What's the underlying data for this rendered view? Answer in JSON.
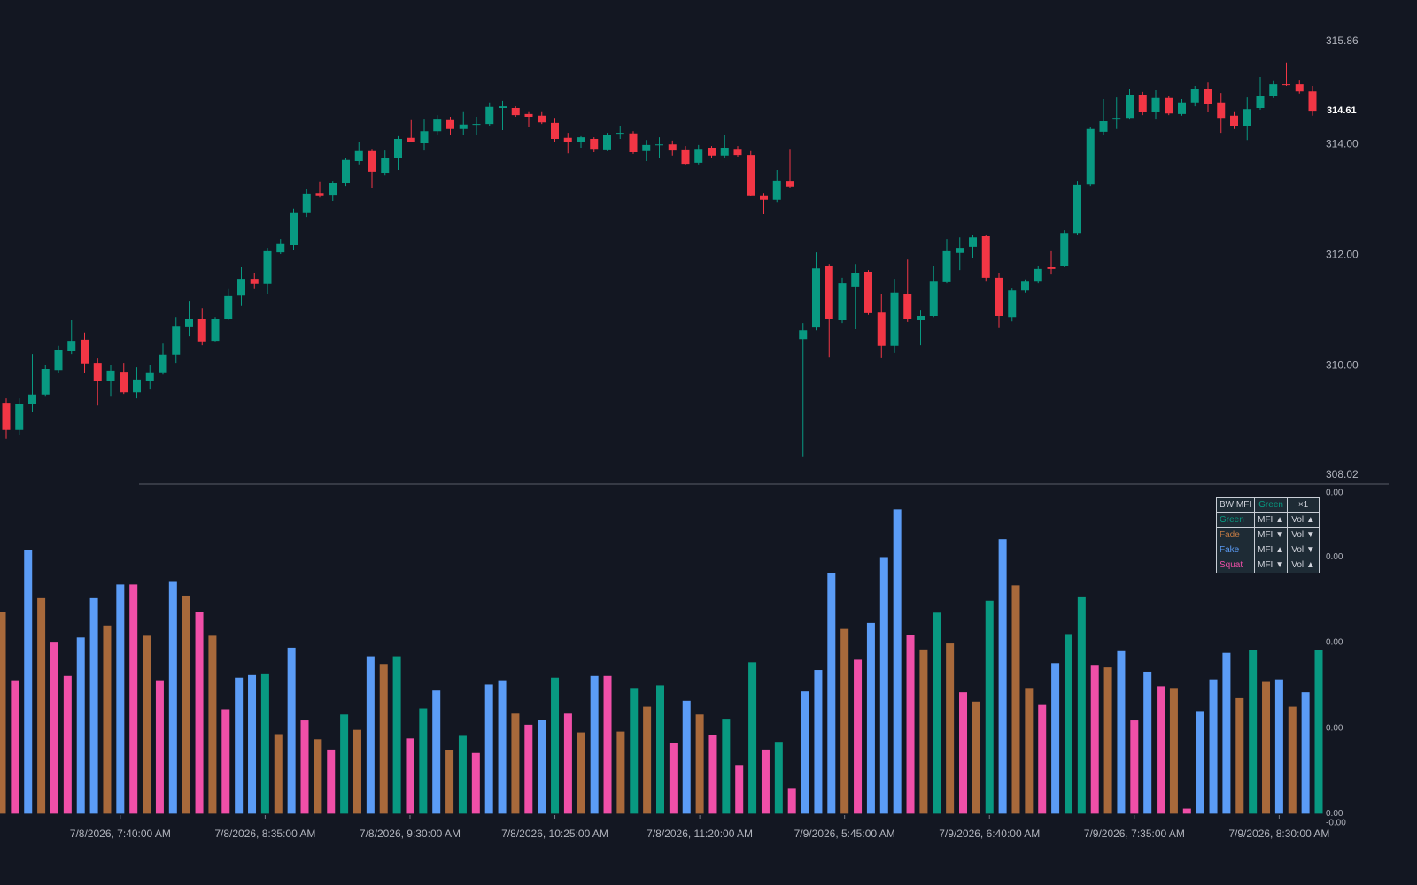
{
  "chart_data": [
    {
      "type": "candlestick",
      "up_color": "#089981",
      "down_color": "#f23645",
      "ylim": [
        308.02,
        315.86
      ],
      "yticks": [
        315.86,
        {
          "value": 314,
          "label": "314.00"
        },
        {
          "value": 312,
          "label": "312.00"
        },
        {
          "value": 310,
          "label": "310.00"
        },
        308.02
      ],
      "last_price": 314.61,
      "open": [
        309.33,
        308.84,
        309.3,
        309.48,
        309.92,
        310.26,
        310.47,
        310.05,
        309.73,
        309.89,
        309.52,
        309.73,
        309.88,
        310.2,
        310.71,
        310.85,
        310.45,
        310.85,
        311.28,
        311.57,
        311.48,
        312.05,
        312.18,
        312.76,
        313.12,
        313.09,
        313.3,
        313.7,
        313.88,
        313.49,
        313.76,
        314.12,
        314.02,
        314.24,
        314.44,
        314.28,
        314.36,
        314.37,
        314.66,
        314.66,
        314.55,
        314.52,
        314.39,
        314.12,
        314.05,
        314.1,
        313.91,
        314.2,
        314.2,
        313.88,
        313.99,
        314.0,
        313.91,
        313.67,
        313.94,
        313.8,
        313.92,
        313.81,
        313.08,
        313.0,
        313.33,
        310.48,
        310.69,
        311.8,
        310.82,
        311.43,
        311.7,
        310.96,
        310.36,
        311.3,
        310.82,
        310.9,
        311.51,
        312.04,
        312.15,
        312.34,
        311.59,
        310.88,
        311.36,
        311.52,
        311.78,
        311.8,
        312.4,
        313.28,
        314.23,
        314.45,
        314.48,
        314.9,
        314.58,
        314.84,
        314.55,
        314.76,
        315.01,
        314.76,
        314.52,
        314.34,
        314.66,
        314.87,
        315.09,
        315.09,
        314.96
      ],
      "high": [
        309.41,
        309.41,
        310.21,
        310.02,
        310.36,
        310.82,
        310.6,
        310.13,
        310.02,
        310.05,
        309.97,
        310.02,
        310.4,
        310.88,
        311.17,
        311.04,
        310.88,
        311.4,
        311.78,
        311.67,
        312.13,
        312.29,
        312.84,
        313.19,
        313.32,
        313.33,
        313.76,
        314.05,
        313.92,
        313.89,
        314.15,
        314.44,
        314.45,
        314.53,
        314.5,
        314.6,
        314.5,
        314.76,
        314.79,
        314.69,
        314.6,
        314.6,
        314.48,
        314.21,
        314.15,
        314.13,
        314.21,
        314.34,
        314.24,
        314.08,
        314.13,
        314.07,
        313.97,
        313.99,
        313.97,
        314.18,
        313.97,
        313.88,
        313.12,
        313.54,
        313.92,
        310.77,
        312.05,
        311.84,
        311.59,
        311.84,
        311.73,
        311.3,
        311.57,
        311.92,
        311.01,
        311.81,
        312.29,
        312.32,
        312.37,
        312.37,
        311.68,
        311.41,
        311.56,
        311.81,
        312.07,
        312.45,
        313.33,
        314.32,
        314.82,
        314.85,
        315.01,
        314.95,
        314.98,
        314.87,
        314.82,
        315.06,
        315.12,
        314.93,
        314.6,
        314.85,
        315.22,
        315.16,
        315.48,
        315.17,
        315.06
      ],
      "low": [
        308.68,
        308.74,
        309.17,
        309.44,
        309.86,
        310.21,
        309.86,
        309.28,
        309.44,
        309.49,
        309.41,
        309.57,
        309.84,
        310.05,
        310.53,
        310.37,
        310.44,
        310.82,
        311.08,
        311.4,
        311.3,
        312.02,
        312.1,
        312.69,
        313.04,
        312.98,
        313.25,
        313.64,
        313.22,
        313.44,
        313.54,
        314.04,
        313.89,
        314.18,
        314.18,
        314.18,
        314.18,
        314.34,
        314.26,
        314.5,
        314.32,
        314.37,
        314.05,
        313.84,
        313.94,
        313.86,
        313.88,
        314.1,
        313.83,
        313.7,
        313.76,
        313.8,
        313.62,
        313.64,
        313.76,
        313.76,
        313.78,
        313.06,
        312.74,
        312.96,
        313.22,
        308.36,
        310.64,
        310.16,
        310.77,
        310.66,
        310.92,
        310.15,
        310.23,
        310.79,
        310.37,
        310.88,
        311.49,
        311.73,
        311.94,
        311.52,
        310.68,
        310.8,
        311.32,
        311.49,
        311.65,
        311.78,
        312.37,
        313.25,
        314.18,
        314.28,
        314.45,
        314.53,
        314.45,
        314.53,
        314.52,
        314.69,
        314.58,
        314.21,
        314.28,
        314.08,
        314.63,
        314.84,
        315.06,
        314.92,
        314.52
      ],
      "close": [
        308.84,
        309.3,
        309.48,
        309.94,
        310.28,
        310.45,
        310.04,
        309.73,
        309.91,
        309.52,
        309.75,
        309.88,
        310.2,
        310.72,
        310.85,
        310.44,
        310.85,
        311.27,
        311.57,
        311.48,
        312.07,
        312.2,
        312.76,
        313.11,
        313.08,
        313.3,
        313.72,
        313.88,
        313.51,
        313.76,
        314.1,
        314.05,
        314.24,
        314.45,
        314.28,
        314.36,
        314.37,
        314.68,
        314.69,
        314.53,
        314.5,
        314.4,
        314.1,
        314.05,
        314.13,
        313.92,
        314.18,
        314.21,
        313.86,
        313.99,
        314.0,
        313.89,
        313.65,
        313.92,
        313.8,
        313.94,
        313.81,
        313.08,
        313.0,
        313.35,
        313.24,
        310.64,
        311.76,
        310.85,
        311.49,
        311.68,
        310.95,
        310.36,
        311.32,
        310.84,
        310.9,
        311.52,
        312.07,
        312.13,
        312.32,
        311.59,
        310.9,
        311.36,
        311.52,
        311.75,
        311.75,
        312.4,
        313.27,
        314.28,
        314.42,
        314.48,
        314.9,
        314.58,
        314.84,
        314.56,
        314.76,
        315.0,
        314.74,
        314.48,
        314.34,
        314.64,
        314.87,
        315.09,
        315.08,
        314.96,
        314.61
      ]
    },
    {
      "type": "bar",
      "ylim": [
        -0.00011,
        0.00375
      ],
      "yticks": [
        {
          "value": 0.00375,
          "label": "0.00"
        },
        {
          "value": 0.003,
          "label": "0.00"
        },
        {
          "value": 0.002,
          "label": "0.00"
        },
        {
          "value": 0.001,
          "label": "0.00"
        },
        {
          "value": 0,
          "label": "0.00"
        },
        {
          "value": -0.00011,
          "label": "-0.00"
        }
      ],
      "categories": [
        null,
        null,
        null,
        null,
        null,
        null,
        null,
        null,
        null,
        "7/8/2026, 7:40:00 AM",
        null,
        null,
        null,
        null,
        null,
        null,
        null,
        null,
        null,
        null,
        "7/8/2026, 8:35:00 AM",
        null,
        null,
        null,
        null,
        null,
        null,
        null,
        null,
        null,
        null,
        "7/8/2026, 9:30:00 AM",
        null,
        null,
        null,
        null,
        null,
        null,
        null,
        null,
        null,
        null,
        "7/8/2026, 10:25:00 AM",
        null,
        null,
        null,
        null,
        null,
        null,
        null,
        null,
        null,
        null,
        "7/8/2026, 11:20:00 AM",
        null,
        null,
        null,
        null,
        null,
        null,
        null,
        null,
        null,
        null,
        "7/9/2026, 5:45:00 AM",
        null,
        null,
        null,
        null,
        null,
        null,
        null,
        null,
        null,
        null,
        "7/9/2026, 6:40:00 AM",
        null,
        null,
        null,
        null,
        null,
        null,
        null,
        null,
        null,
        null,
        "7/9/2026, 7:35:00 AM",
        null,
        null,
        null,
        null,
        null,
        null,
        null,
        null,
        null,
        null,
        "7/9/2026, 8:30:00 AM",
        null,
        null,
        null
      ],
      "values": [
        0.00236,
        0.00156,
        0.00308,
        0.00252,
        0.00201,
        0.00161,
        0.00206,
        0.00252,
        0.0022,
        0.00268,
        0.00268,
        0.00208,
        0.00156,
        0.00271,
        0.00255,
        0.00236,
        0.00208,
        0.00122,
        0.00159,
        0.00162,
        0.00163,
        0.00093,
        0.00194,
        0.00109,
        0.00087,
        0.00075,
        0.00116,
        0.00098,
        0.00184,
        0.00175,
        0.00184,
        0.00088,
        0.00123,
        0.00144,
        0.00074,
        0.00091,
        0.00071,
        0.00151,
        0.00156,
        0.00117,
        0.00104,
        0.0011,
        0.00159,
        0.00117,
        0.00095,
        0.00161,
        0.00161,
        0.00096,
        0.00147,
        0.00125,
        0.0015,
        0.00083,
        0.00132,
        0.00116,
        0.00092,
        0.00111,
        0.00057,
        0.00177,
        0.00075,
        0.00084,
        0.0003,
        0.00143,
        0.00168,
        0.00281,
        0.00216,
        0.0018,
        0.00223,
        0.003,
        0.00356,
        0.00209,
        0.00192,
        0.00235,
        0.00199,
        0.00142,
        0.00131,
        0.00249,
        0.00321,
        0.00267,
        0.00147,
        0.00127,
        0.00176,
        0.0021,
        0.00253,
        0.00174,
        0.00171,
        0.0019,
        0.00109,
        0.00166,
        0.00149,
        0.00147,
        6e-05,
        0.0012,
        0.00157,
        0.00188,
        0.00135,
        0.00191,
        0.00154,
        0.00157,
        0.00125,
        0.00142,
        0.00191
      ],
      "colors": [
        "#a8693b",
        "#f04fa8",
        "#5b9cf6",
        "#a8693b",
        "#f04fa8",
        "#f04fa8",
        "#5b9cf6",
        "#5b9cf6",
        "#a8693b",
        "#5b9cf6",
        "#f04fa8",
        "#a8693b",
        "#f04fa8",
        "#5b9cf6",
        "#a8693b",
        "#f04fa8",
        "#a8693b",
        "#f04fa8",
        "#5b9cf6",
        "#5b9cf6",
        "#089981",
        "#a8693b",
        "#5b9cf6",
        "#f04fa8",
        "#a8693b",
        "#f04fa8",
        "#089981",
        "#a8693b",
        "#5b9cf6",
        "#a8693b",
        "#089981",
        "#f04fa8",
        "#089981",
        "#5b9cf6",
        "#a8693b",
        "#089981",
        "#f04fa8",
        "#5b9cf6",
        "#5b9cf6",
        "#a8693b",
        "#f04fa8",
        "#5b9cf6",
        "#089981",
        "#f04fa8",
        "#a8693b",
        "#5b9cf6",
        "#f04fa8",
        "#a8693b",
        "#089981",
        "#a8693b",
        "#089981",
        "#f04fa8",
        "#5b9cf6",
        "#a8693b",
        "#f04fa8",
        "#089981",
        "#f04fa8",
        "#089981",
        "#f04fa8",
        "#089981",
        "#f04fa8",
        "#5b9cf6",
        "#5b9cf6",
        "#5b9cf6",
        "#a8693b",
        "#f04fa8",
        "#5b9cf6",
        "#5b9cf6",
        "#5b9cf6",
        "#f04fa8",
        "#a8693b",
        "#089981",
        "#a8693b",
        "#f04fa8",
        "#a8693b",
        "#089981",
        "#5b9cf6",
        "#a8693b",
        "#a8693b",
        "#f04fa8",
        "#5b9cf6",
        "#089981",
        "#089981",
        "#f04fa8",
        "#a8693b",
        "#5b9cf6",
        "#f04fa8",
        "#5b9cf6",
        "#f04fa8",
        "#a8693b",
        "#f04fa8",
        "#5b9cf6",
        "#5b9cf6",
        "#5b9cf6",
        "#a8693b",
        "#089981",
        "#a8693b",
        "#5b9cf6",
        "#a8693b",
        "#5b9cf6",
        "#089981"
      ]
    }
  ],
  "legend": {
    "rows": [
      [
        "BW MFI",
        "Green",
        "×1"
      ],
      [
        "Green",
        "MFI ▲",
        "Vol ▲"
      ],
      [
        "Fade",
        "MFI ▼",
        "Vol ▼"
      ],
      [
        "Fake",
        "MFI ▲",
        "Vol ▼"
      ],
      [
        "Squat",
        "MFI ▼",
        "Vol ▲"
      ]
    ]
  }
}
